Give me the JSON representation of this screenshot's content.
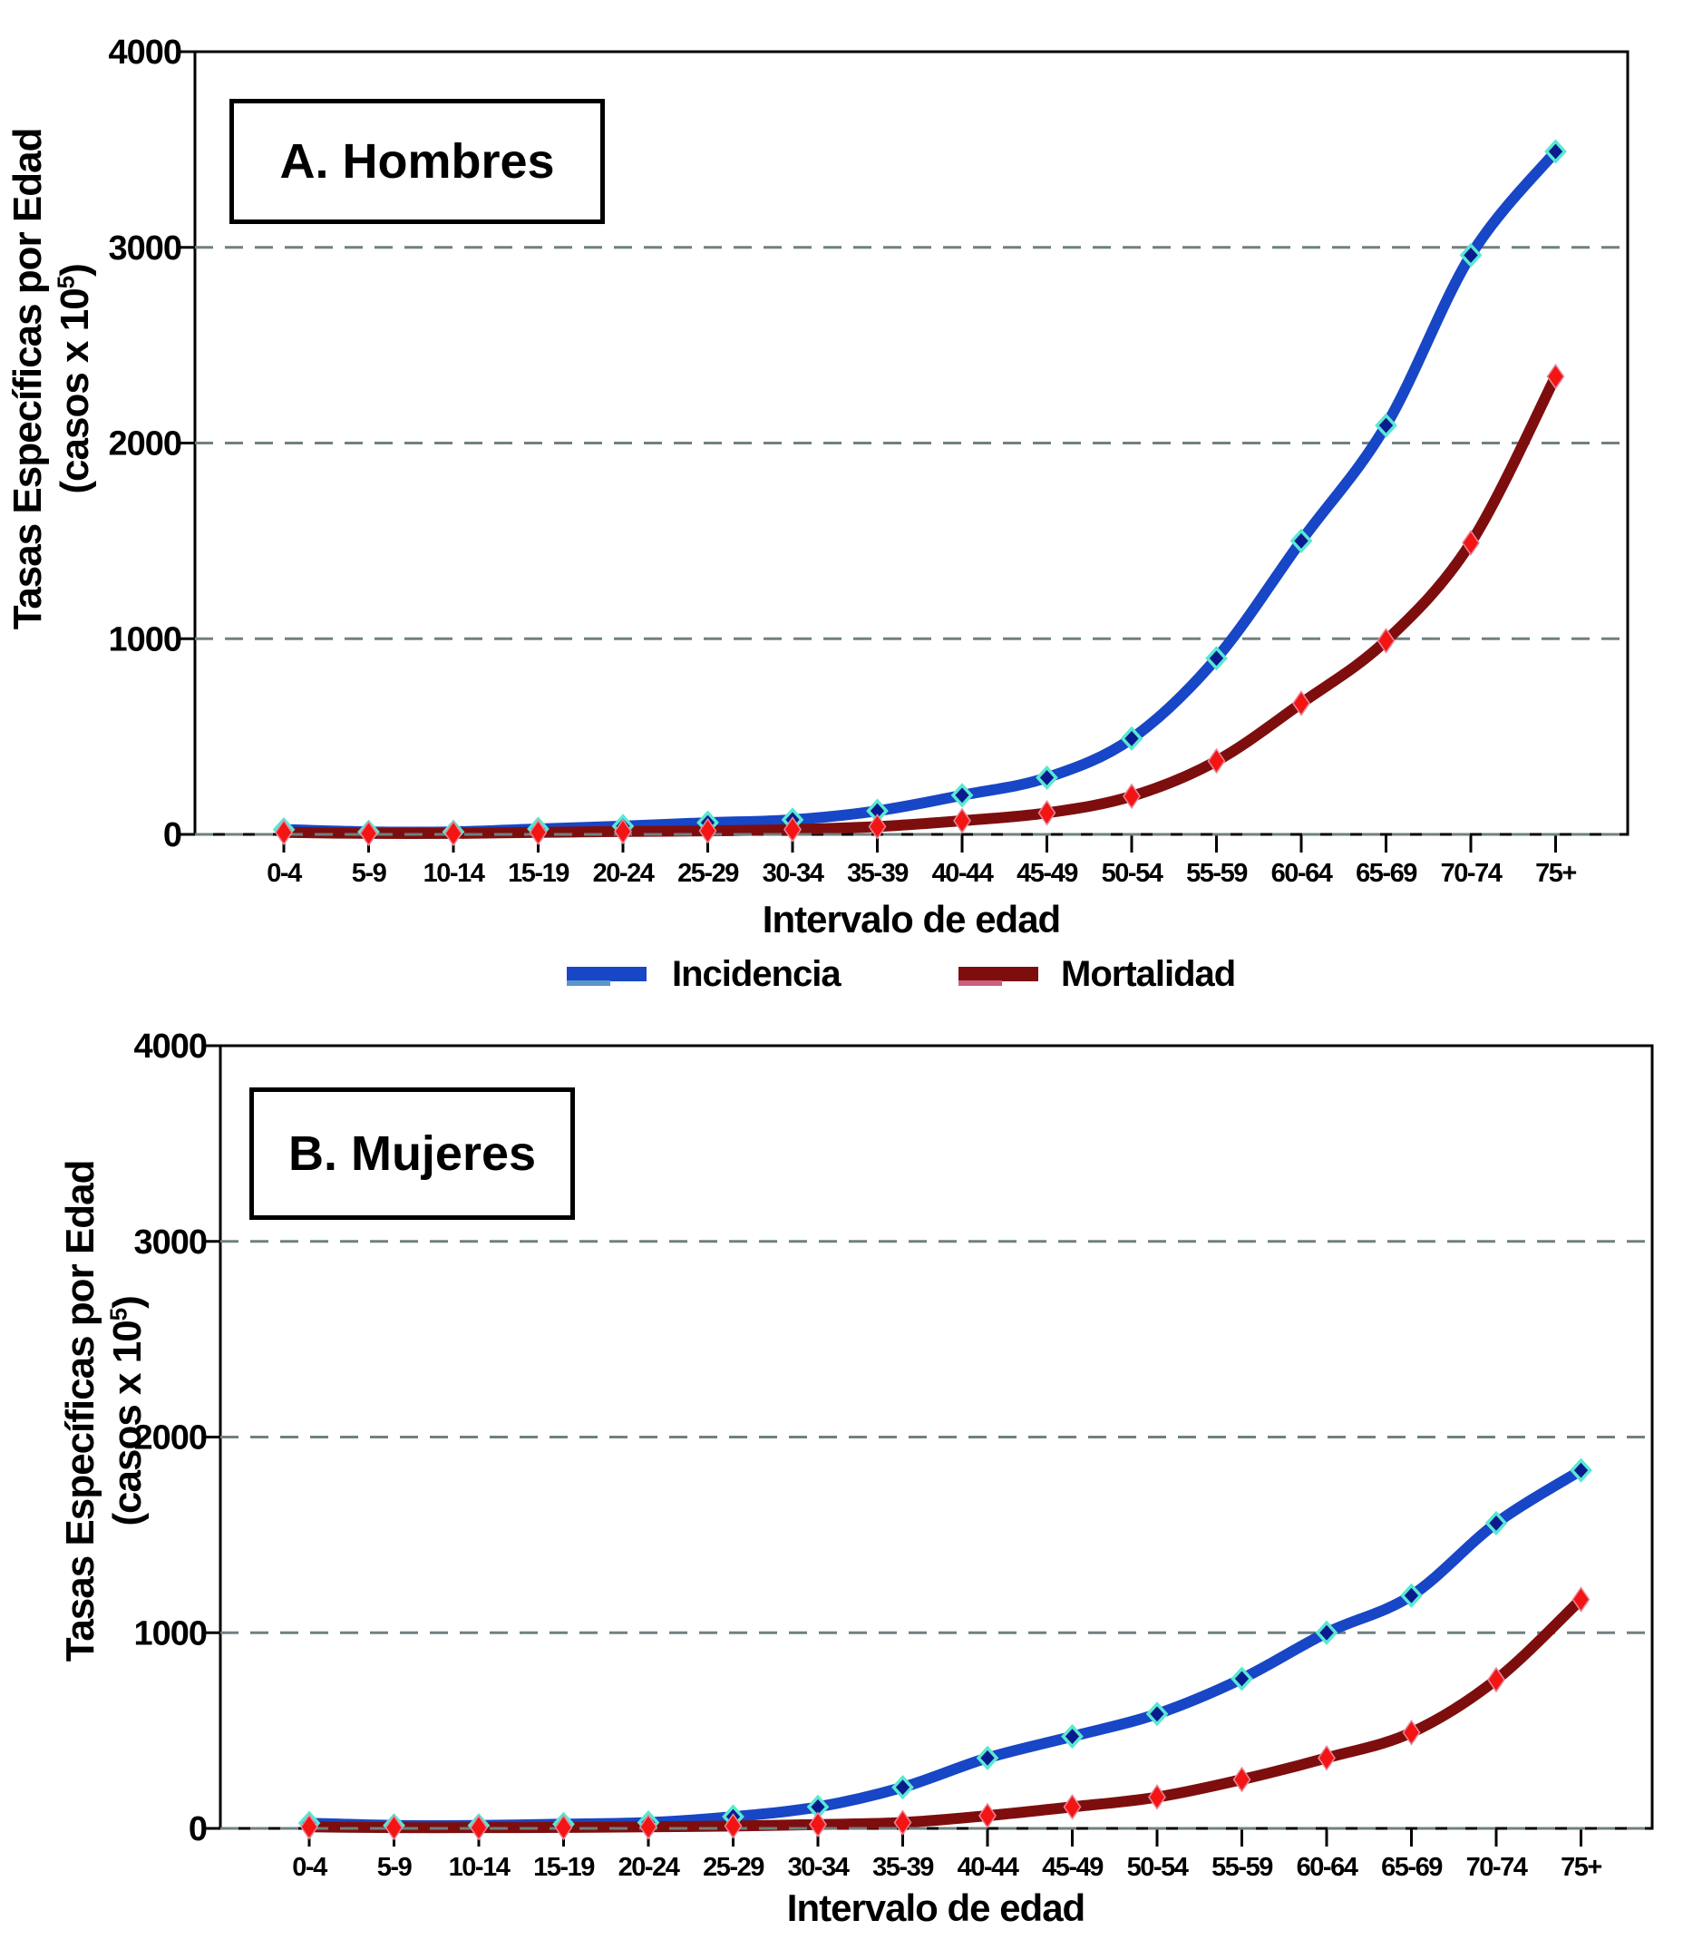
{
  "figure": {
    "background": "#ffffff",
    "grid_color": "#708080",
    "axis_color": "#000000"
  },
  "legend": {
    "position": "between-charts",
    "items": [
      {
        "label": "Incidencia",
        "color": "#1746C6",
        "accent": "#5A96CC"
      },
      {
        "label": "Mortalidad",
        "color": "#7E0E0E",
        "accent": "#C9607E"
      }
    ]
  },
  "chart_data": [
    {
      "type": "line",
      "panel": "A",
      "title": "A. Hombres",
      "xlabel": "Intervalo de edad",
      "ylabel_line1": "Tasas Específicas por Edad",
      "ylabel_line2_prefix": "(casos x 10",
      "ylabel_sup": "5",
      "ylabel_line2_suffix": ")",
      "ylim": [
        0,
        4000
      ],
      "ytick_step": 1000,
      "yticklabels": [
        "0",
        "1000",
        "2000",
        "3000",
        "4000"
      ],
      "grid": "dashed-horizontal",
      "categories": [
        "0-4",
        "5-9",
        "10-14",
        "15-19",
        "20-24",
        "25-29",
        "30-34",
        "35-39",
        "40-44",
        "45-49",
        "50-54",
        "55-59",
        "60-64",
        "65-69",
        "70-74",
        "75+"
      ],
      "series": [
        {
          "name": "Incidencia",
          "color": "#1746C6",
          "marker": "diamond",
          "marker_fill": "#0A1B8E",
          "marker_stroke": "#59E8D2",
          "values": [
            25,
            13,
            13,
            28,
            42,
            60,
            75,
            120,
            200,
            290,
            490,
            900,
            1500,
            2090,
            2960,
            3490
          ]
        },
        {
          "name": "Mortalidad",
          "color": "#7E0E0E",
          "marker": "diamond",
          "marker_fill": "#F31414",
          "marker_stroke": "#E8879A",
          "values": [
            10,
            5,
            5,
            10,
            15,
            18,
            25,
            40,
            70,
            110,
            195,
            375,
            670,
            990,
            1490,
            2340
          ]
        }
      ]
    },
    {
      "type": "line",
      "panel": "B",
      "title": "B. Mujeres",
      "xlabel": "Intervalo de edad",
      "ylabel_line1": "Tasas Específicas por Edad",
      "ylabel_line2_prefix": "(casos x 10",
      "ylabel_sup": "5",
      "ylabel_line2_suffix": ")",
      "ylim": [
        0,
        4000
      ],
      "ytick_step": 1000,
      "yticklabels": [
        "0",
        "1000",
        "2000",
        "3000",
        "4000"
      ],
      "grid": "dashed-horizontal",
      "categories": [
        "0-4",
        "5-9",
        "10-14",
        "15-19",
        "20-24",
        "25-29",
        "30-34",
        "35-39",
        "40-44",
        "45-49",
        "50-54",
        "55-59",
        "60-64",
        "65-69",
        "70-74",
        "75+"
      ],
      "series": [
        {
          "name": "Incidencia",
          "color": "#1746C6",
          "marker": "diamond",
          "marker_fill": "#0A1B8E",
          "marker_stroke": "#59E8D2",
          "values": [
            27,
            15,
            15,
            22,
            30,
            60,
            110,
            210,
            360,
            470,
            585,
            765,
            1000,
            1190,
            1560,
            1830
          ]
        },
        {
          "name": "Mortalidad",
          "color": "#7E0E0E",
          "marker": "diamond",
          "marker_fill": "#F31414",
          "marker_stroke": "#E8879A",
          "values": [
            8,
            4,
            4,
            5,
            8,
            12,
            20,
            30,
            65,
            110,
            160,
            250,
            360,
            490,
            760,
            1170
          ]
        }
      ]
    }
  ]
}
